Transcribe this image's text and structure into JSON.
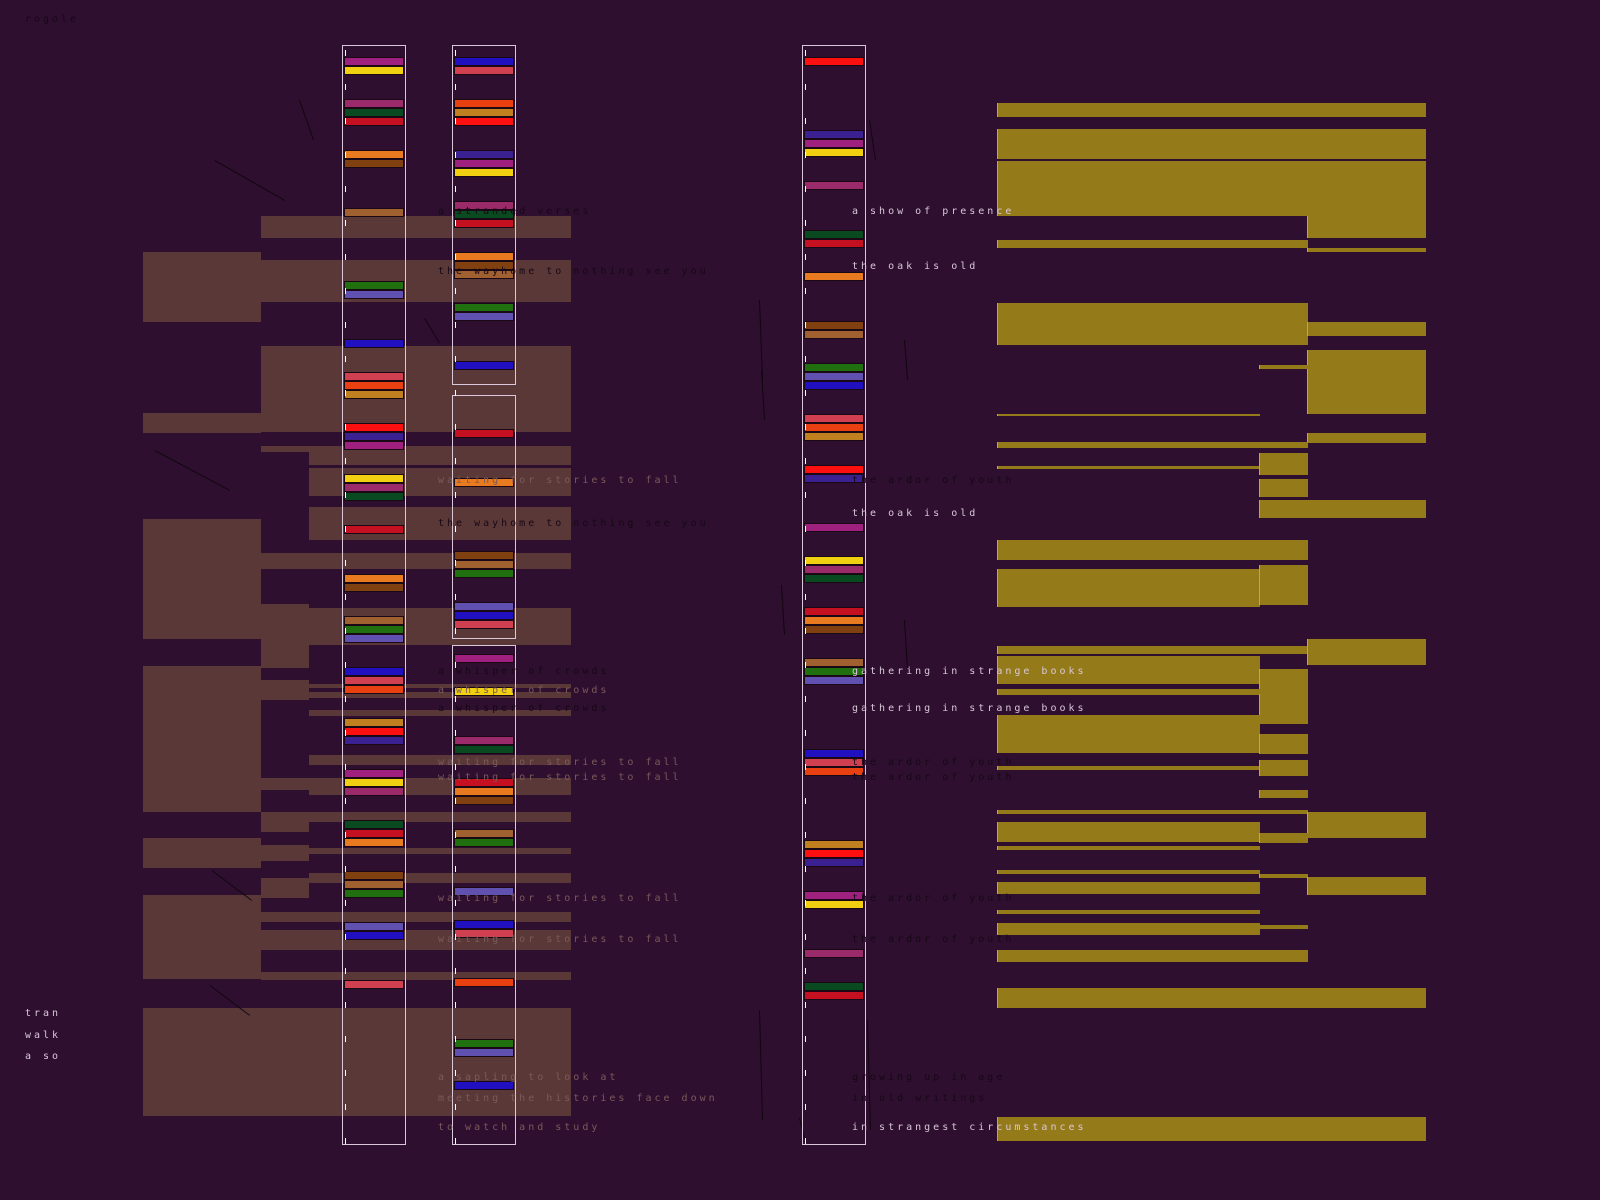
{
  "corner_label": "rogole",
  "side_labels": [
    "tran",
    "walk",
    "a so"
  ],
  "left_texts": [
    "a stranded verses",
    "the wayhome to nothing see you",
    "waiting for stories to fall",
    "the wayhome to nothing see you",
    "a whisper of crowds",
    "a whisper of crowds",
    "a whisper of crowds",
    "waiting for stories to fall",
    "waiting for stories to fall",
    "waiting for stories to fall",
    "waiting for stories to fall",
    "a sapling to look at",
    "meeting the histories face down",
    "to watch and study"
  ],
  "right_texts": [
    "a show of presence",
    "the oak is old",
    "the ardor of youth",
    "the oak is old",
    "gathering in strange books",
    "gathering in strange books",
    "the ardor of youth",
    "the ardor of youth",
    "the ardor of youth",
    "the ardor of youth",
    "growing up in age",
    "in old writings",
    "in strangest circumstances"
  ],
  "colors": {
    "background": "#2e0f2f",
    "brown": "#5b3838",
    "gold": "#957a1a"
  }
}
